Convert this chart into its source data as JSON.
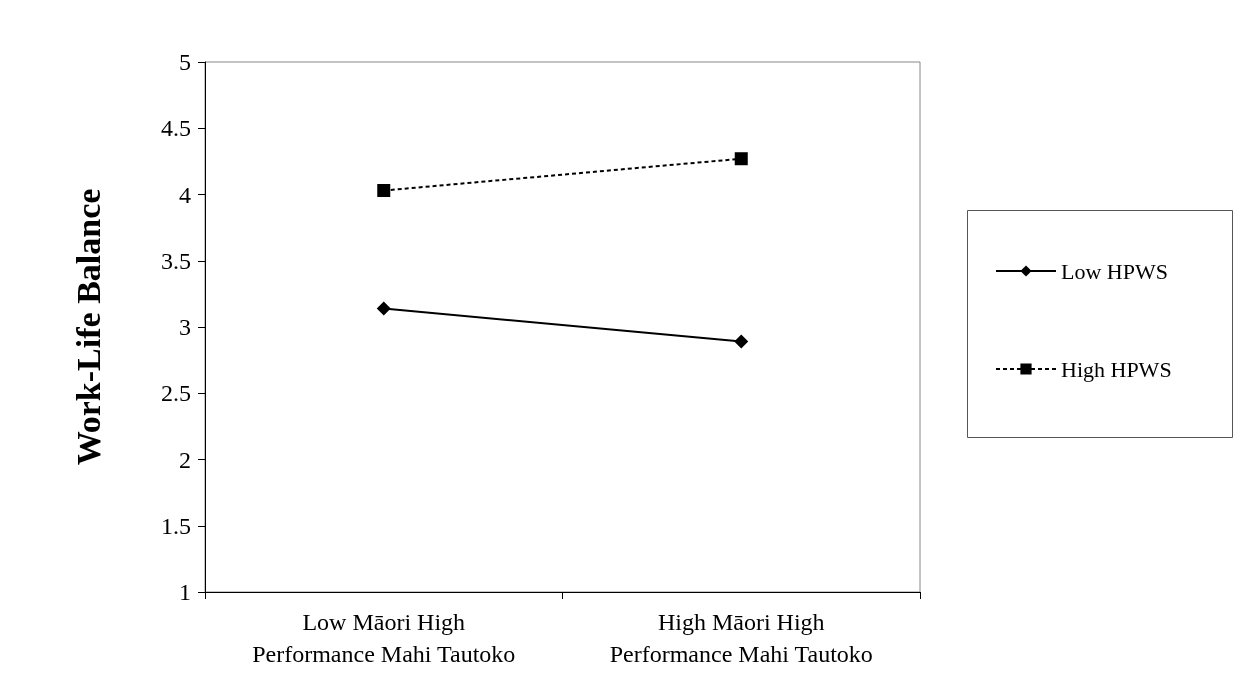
{
  "chart_data": {
    "type": "line",
    "ylabel": "Work-Life Balance",
    "categories": [
      "Low Māori High\nPerformance Mahi Tautoko",
      "High Māori High\nPerformance Mahi Tautoko"
    ],
    "series": [
      {
        "name": "Low HPWS",
        "color": "#000000",
        "values": [
          3.14,
          2.89
        ],
        "marker": "diamond",
        "line_style": "solid"
      },
      {
        "name": "High HPWS",
        "color": "#000000",
        "values": [
          4.03,
          4.27
        ],
        "marker": "square",
        "line_style": "dashed"
      }
    ],
    "ylim": [
      1,
      5
    ],
    "yticks": [
      1,
      1.5,
      2,
      2.5,
      3,
      3.5,
      4,
      4.5,
      5
    ],
    "grid": false,
    "legend": "right"
  }
}
